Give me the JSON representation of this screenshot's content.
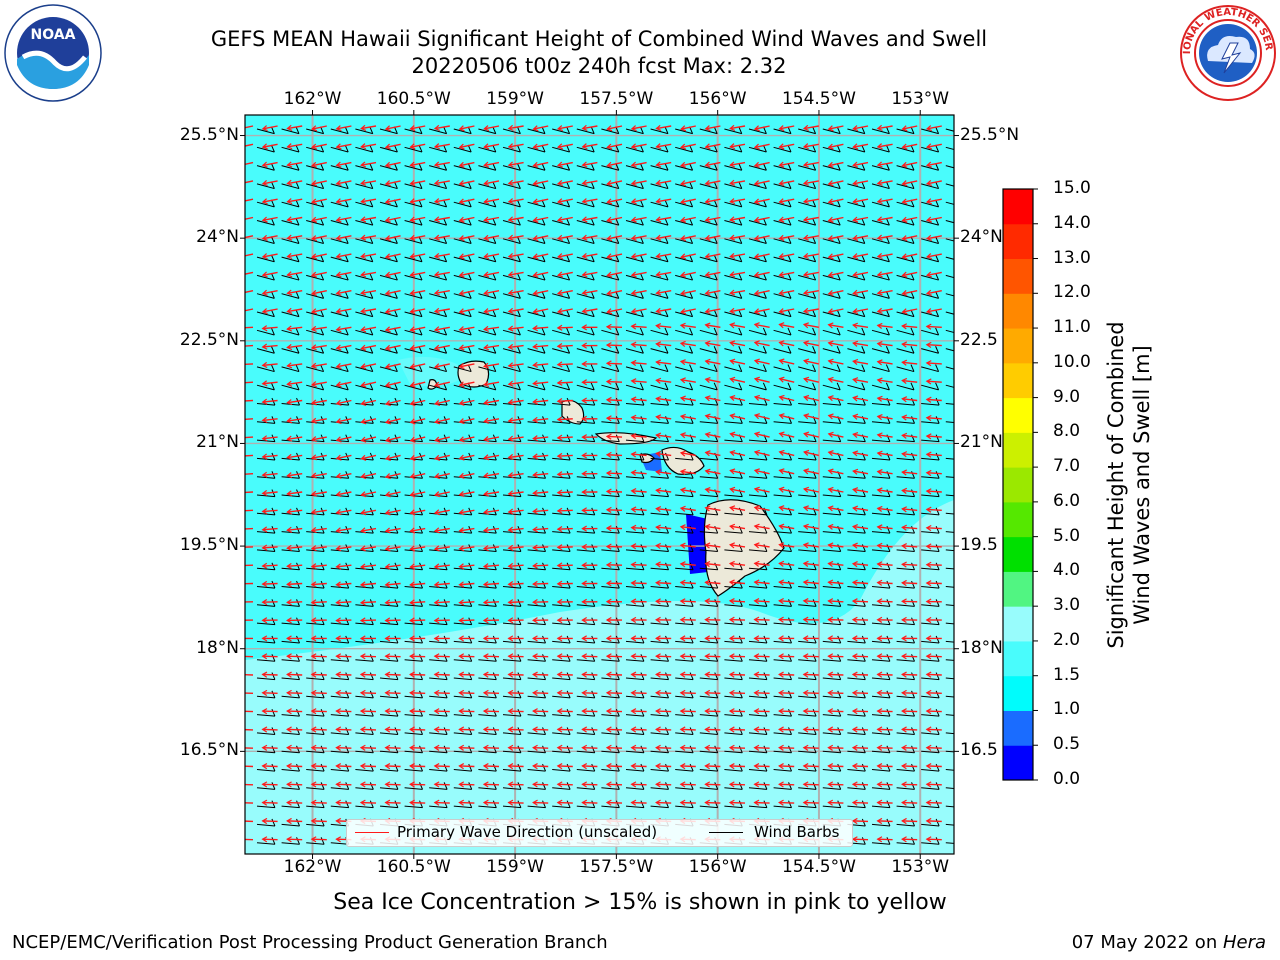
{
  "title": {
    "line1": "GEFS MEAN Hawaii Significant Height of Combined Wind Waves and Swell",
    "line2": "20220506 t00z 240h fcst   Max: 2.32"
  },
  "logos": {
    "left_text": "NOAA",
    "left_ring_text": "NATIONAL OCEANIC AND ATMOSPHERIC ADMINISTRATION · U.S. DEPARTMENT OF COMMERCE",
    "right_ring_text": "NATIONAL WEATHER SERVICE",
    "left_icon": "noaa-logo",
    "right_icon": "nws-logo"
  },
  "map": {
    "lon_ticks": [
      "162°W",
      "160.5°W",
      "159°W",
      "157.5°W",
      "156°W",
      "154.5°W",
      "153°W"
    ],
    "lat_ticks": [
      "25.5°N",
      "24°N",
      "22.5°N",
      "21°N",
      "19.5°N",
      "18°N",
      "16.5°N"
    ],
    "lat_ticks_right": [
      "25.5°N",
      "24°N",
      "22.5",
      "21°N",
      "19.5",
      "18°N",
      "16.5"
    ],
    "lon_range": [
      -163,
      -152.5
    ],
    "lat_range": [
      15.0,
      25.8
    ],
    "colors": {
      "ocean_main": "#49fcfc",
      "ocean_light": "#98fcfc",
      "ocean_low": "#00fcfc",
      "land": "#ece9d9",
      "wave_arrow": "#ff1a1a",
      "wind_barb": "#000000",
      "gridline": "#b0b0b0"
    }
  },
  "legend": {
    "wave_label": "Primary Wave Direction (unscaled)",
    "barb_label": "Wind Barbs"
  },
  "colorbar": {
    "label_line1": "Significant Height of Combined",
    "label_line2": "Wind Waves and Swell [m]",
    "ticks": [
      "15.0",
      "14.0",
      "13.0",
      "12.0",
      "11.0",
      "10.0",
      "9.0",
      "8.0",
      "7.0",
      "6.0",
      "5.0",
      "4.0",
      "3.0",
      "2.0",
      "1.5",
      "1.0",
      "0.5",
      "0.0"
    ],
    "colors_bottom_to_top": [
      "#0000ff",
      "#1a6cff",
      "#00fcfc",
      "#49fcfc",
      "#98fcfc",
      "#51f582",
      "#00e000",
      "#55e800",
      "#9be800",
      "#ccf000",
      "#ffff00",
      "#ffcc00",
      "#ffaa00",
      "#ff8800",
      "#ff5500",
      "#ff2a00",
      "#ff0000"
    ]
  },
  "subcaption": "Sea Ice Concentration > 15% is shown in pink to yellow",
  "footer": {
    "left": "NCEP/EMC/Verification Post Processing Product Generation Branch",
    "right_date": "07 May 2022 on ",
    "right_host": "Hera"
  }
}
